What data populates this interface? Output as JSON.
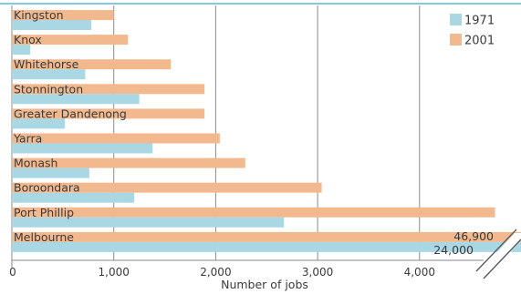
{
  "chart_data": {
    "type": "bar",
    "orientation": "horizontal",
    "categories": [
      "Kingston",
      "Knox",
      "Whitehorse",
      "Stonnington",
      "Greater Dandenong",
      "Yarra",
      "Monash",
      "Boroondara",
      "Port Phillip",
      "Melbourne"
    ],
    "series": [
      {
        "name": "1971",
        "color": "#a9d8e4",
        "values": [
          780,
          180,
          720,
          1250,
          520,
          1380,
          760,
          1200,
          2670,
          24000
        ]
      },
      {
        "name": "2001",
        "color": "#f2b98f",
        "values": [
          1000,
          1140,
          1560,
          1890,
          1890,
          2040,
          2290,
          3040,
          4740,
          46900
        ]
      }
    ],
    "broken_bar_labels": [
      {
        "category": "Melbourne",
        "series": "2001",
        "label": "46,900"
      },
      {
        "category": "Melbourne",
        "series": "1971",
        "label": "24,000"
      }
    ],
    "xlabel": "Number of jobs",
    "xlim": [
      0,
      5000
    ],
    "xticks": [
      0,
      1000,
      2000,
      3000,
      4000
    ],
    "xtick_labels": [
      "0",
      "1,000",
      "2,000",
      "3,000",
      "4,000"
    ],
    "grid": "vertical",
    "legend_position": "top-right",
    "axis_break": true
  }
}
